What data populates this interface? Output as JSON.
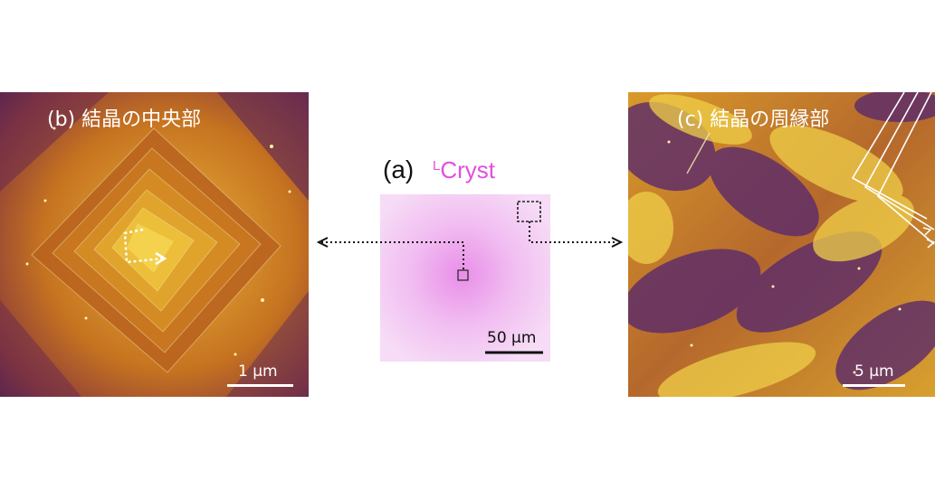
{
  "panel_a": {
    "label": "(a)",
    "sample_prefix": "L",
    "sample_name": "Cryst",
    "scalebar": "50 μm"
  },
  "panel_b": {
    "title": "(b) 結晶の中央部",
    "scalebar": "1 μm"
  },
  "panel_c": {
    "title": "(c) 結晶の周縁部",
    "scalebar": "5 μm"
  },
  "colors": {
    "sample_text": "#e24fe0",
    "afm_dark": "#4a1f6e",
    "afm_mid": "#c8741c",
    "afm_light": "#f2d84a",
    "optical_bg": "#f3d3f3",
    "optical_center": "#e48de3"
  }
}
